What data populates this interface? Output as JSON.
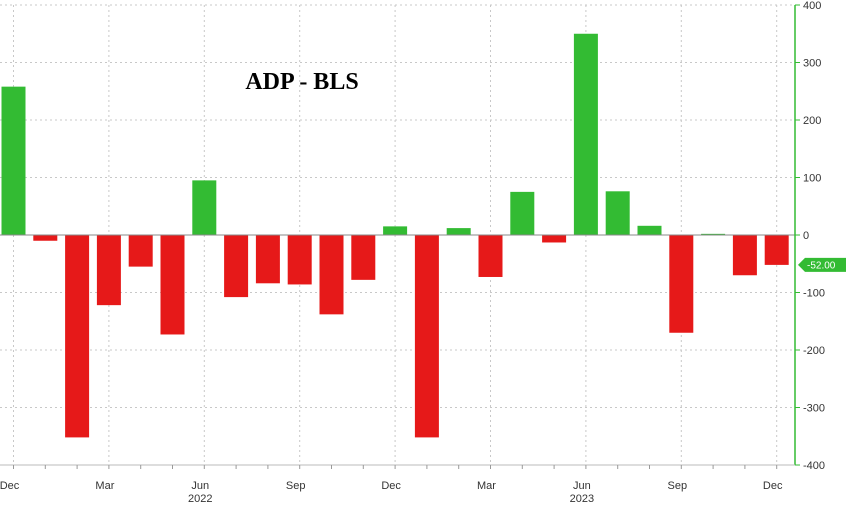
{
  "chart_data": {
    "type": "bar",
    "title": "ADP - BLS",
    "xlabel": "",
    "ylabel": "",
    "ylim": [
      -400,
      400
    ],
    "yticks": [
      400,
      300,
      200,
      100,
      0,
      -100,
      -200,
      -300,
      -400
    ],
    "grid": true,
    "axis_side": "right",
    "categories": [
      "Dec 2021",
      "Jan 2022",
      "Feb 2022",
      "Mar 2022",
      "Apr 2022",
      "May 2022",
      "Jun 2022",
      "Jul 2022",
      "Aug 2022",
      "Sep 2022",
      "Oct 2022",
      "Nov 2022",
      "Dec 2022",
      "Jan 2023",
      "Feb 2023",
      "Mar 2023",
      "Apr 2023",
      "May 2023",
      "Jun 2023",
      "Jul 2023",
      "Aug 2023",
      "Sep 2023",
      "Oct 2023",
      "Nov 2023",
      "Dec 2023"
    ],
    "values": [
      258,
      -10,
      -352,
      -122,
      -55,
      -173,
      95,
      -108,
      -84,
      -86,
      -138,
      -78,
      15,
      -352,
      12,
      -73,
      75,
      -13,
      350,
      76,
      16,
      -170,
      2,
      -70,
      -52
    ],
    "x_tick_labels": [
      {
        "index": 0,
        "label": "Dec"
      },
      {
        "index": 3,
        "label": "Mar"
      },
      {
        "index": 6,
        "label": "Jun"
      },
      {
        "index": 9,
        "label": "Sep"
      },
      {
        "index": 12,
        "label": "Dec"
      },
      {
        "index": 15,
        "label": "Mar"
      },
      {
        "index": 18,
        "label": "Jun"
      },
      {
        "index": 21,
        "label": "Sep"
      },
      {
        "index": 24,
        "label": "Dec"
      }
    ],
    "year_labels": [
      {
        "index": 6,
        "label": "2022"
      },
      {
        "index": 18,
        "label": "2023"
      }
    ],
    "last_value_label": "-52.00",
    "last_value": -52,
    "colors": {
      "positive": "#33bb33",
      "negative": "#e61919",
      "axis": "#33bb33",
      "grid": "#c8c8c8"
    }
  }
}
